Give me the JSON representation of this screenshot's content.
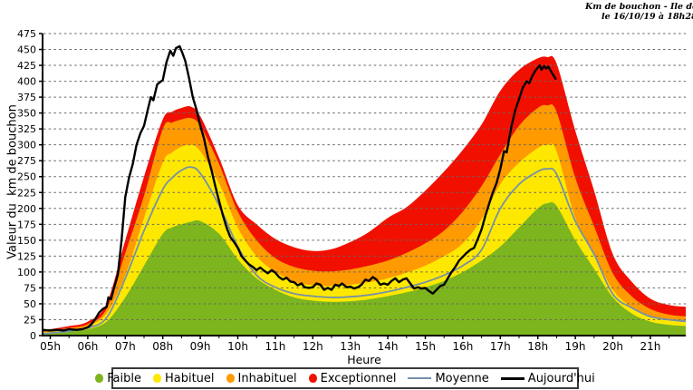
{
  "title": {
    "line1": "Km de bouchon - Ile de France",
    "line2": "le 16/10/19 à 18h28"
  },
  "colors": {
    "faible": "#7cb51e",
    "habituel": "#ffe800",
    "inhabituel": "#ff9a00",
    "exceptionnel": "#f11000",
    "moyenne": "#7591a8",
    "aujourdhui": "#000000",
    "grid": "#666666",
    "axis": "#000000"
  },
  "chart_data": {
    "type": "area",
    "title": "Km de bouchon - Ile de France",
    "subtitle": "le 16/10/19 à 18h28",
    "xlabel": "Heure",
    "ylabel": "Valeur du  km de bouchon",
    "xlim": [
      4.8,
      21.95
    ],
    "ylim": [
      0,
      475
    ],
    "grid": "horizontal dashed every 25",
    "legend_position": "bottom",
    "y_ticks": [
      0,
      25,
      50,
      75,
      100,
      125,
      150,
      175,
      200,
      225,
      250,
      275,
      300,
      325,
      350,
      375,
      400,
      425,
      450,
      475
    ],
    "x_ticks": [
      {
        "v": 5,
        "label": "05h"
      },
      {
        "v": 6,
        "label": "06h"
      },
      {
        "v": 7,
        "label": "07h"
      },
      {
        "v": 8,
        "label": "08h"
      },
      {
        "v": 9,
        "label": "09h"
      },
      {
        "v": 10,
        "label": "10h"
      },
      {
        "v": 11,
        "label": "11h"
      },
      {
        "v": 12,
        "label": "12h"
      },
      {
        "v": 13,
        "label": "13h"
      },
      {
        "v": 14,
        "label": "14h"
      },
      {
        "v": 15,
        "label": "15h"
      },
      {
        "v": 16,
        "label": "16h"
      },
      {
        "v": 17,
        "label": "17h"
      },
      {
        "v": 18,
        "label": "18h"
      },
      {
        "v": 19,
        "label": "19h"
      },
      {
        "v": 20,
        "label": "20h"
      },
      {
        "v": 21,
        "label": "21h"
      }
    ],
    "x": [
      4.8,
      5,
      5.5,
      6,
      6.5,
      7,
      7.5,
      8,
      8.25,
      8.5,
      8.75,
      9,
      9.5,
      10,
      10.5,
      11,
      11.5,
      12,
      12.5,
      13,
      13.5,
      14,
      14.5,
      15,
      15.5,
      16,
      16.5,
      17,
      17.5,
      18,
      18.25,
      18.5,
      19,
      19.5,
      20,
      20.5,
      21,
      21.5,
      22
    ],
    "bands": [
      {
        "name": "Exceptionnel",
        "color": "#f11000",
        "values": [
          8,
          10,
          15,
          22,
          50,
          150,
          250,
          340,
          352,
          358,
          360,
          345,
          280,
          205,
          175,
          152,
          139,
          133,
          136,
          147,
          163,
          185,
          202,
          228,
          258,
          292,
          332,
          385,
          418,
          436,
          438,
          428,
          322,
          228,
          128,
          85,
          58,
          48,
          45
        ]
      },
      {
        "name": "Inhabituel",
        "color": "#ff9a00",
        "values": [
          6,
          8,
          12,
          18,
          42,
          130,
          220,
          325,
          335,
          340,
          342,
          330,
          270,
          195,
          150,
          122,
          108,
          102,
          101,
          104,
          110,
          118,
          130,
          145,
          165,
          195,
          235,
          285,
          330,
          358,
          362,
          352,
          248,
          172,
          98,
          62,
          42,
          33,
          30
        ]
      },
      {
        "name": "Habituel",
        "color": "#ffe800",
        "values": [
          5,
          6,
          9,
          15,
          35,
          95,
          185,
          272,
          288,
          297,
          300,
          290,
          240,
          170,
          125,
          100,
          85,
          79,
          78,
          80,
          84,
          90,
          99,
          110,
          125,
          145,
          183,
          238,
          272,
          295,
          300,
          290,
          185,
          128,
          72,
          45,
          30,
          25,
          23
        ]
      },
      {
        "name": "Faible",
        "color": "#7cb51e",
        "values": [
          3,
          4,
          6,
          10,
          22,
          60,
          110,
          160,
          170,
          175,
          179,
          180,
          160,
          120,
          90,
          72,
          60,
          55,
          53,
          54,
          57,
          62,
          68,
          76,
          86,
          100,
          118,
          140,
          170,
          200,
          208,
          204,
          150,
          105,
          60,
          35,
          22,
          17,
          15
        ]
      }
    ],
    "lines": [
      {
        "name": "Moyenne",
        "color": "#7591a8",
        "width": 1.8,
        "smooth": true,
        "values": [
          3,
          4,
          7,
          12,
          28,
          90,
          165,
          230,
          248,
          260,
          265,
          255,
          205,
          140,
          95,
          76,
          66,
          62,
          60,
          61,
          64,
          69,
          76,
          84,
          95,
          110,
          135,
          200,
          238,
          258,
          262,
          254,
          180,
          128,
          65,
          44,
          30,
          25,
          22
        ]
      },
      {
        "name": "Aujourd'hui",
        "color": "#000000",
        "width": 2.4,
        "smooth": false,
        "points": [
          [
            4.8,
            9
          ],
          [
            5,
            8
          ],
          [
            5.2,
            9
          ],
          [
            5.35,
            8
          ],
          [
            5.5,
            10
          ],
          [
            5.7,
            9
          ],
          [
            5.85,
            10
          ],
          [
            6,
            13
          ],
          [
            6.1,
            18
          ],
          [
            6.2,
            26
          ],
          [
            6.3,
            36
          ],
          [
            6.4,
            42
          ],
          [
            6.5,
            45
          ],
          [
            6.55,
            60
          ],
          [
            6.62,
            57
          ],
          [
            6.7,
            75
          ],
          [
            6.8,
            95
          ],
          [
            6.9,
            150
          ],
          [
            7,
            218
          ],
          [
            7.1,
            248
          ],
          [
            7.2,
            270
          ],
          [
            7.3,
            300
          ],
          [
            7.4,
            318
          ],
          [
            7.5,
            330
          ],
          [
            7.6,
            355
          ],
          [
            7.68,
            375
          ],
          [
            7.75,
            370
          ],
          [
            7.85,
            395
          ],
          [
            8,
            402
          ],
          [
            8.1,
            430
          ],
          [
            8.2,
            448
          ],
          [
            8.28,
            440
          ],
          [
            8.35,
            452
          ],
          [
            8.45,
            455
          ],
          [
            8.52,
            445
          ],
          [
            8.6,
            432
          ],
          [
            8.7,
            405
          ],
          [
            8.8,
            375
          ],
          [
            8.9,
            355
          ],
          [
            9,
            330
          ],
          [
            9.1,
            310
          ],
          [
            9.2,
            282
          ],
          [
            9.3,
            260
          ],
          [
            9.4,
            235
          ],
          [
            9.5,
            212
          ],
          [
            9.6,
            190
          ],
          [
            9.7,
            170
          ],
          [
            9.8,
            155
          ],
          [
            9.9,
            147
          ],
          [
            10,
            138
          ],
          [
            10.1,
            125
          ],
          [
            10.2,
            118
          ],
          [
            10.3,
            112
          ],
          [
            10.4,
            108
          ],
          [
            10.5,
            103
          ],
          [
            10.6,
            107
          ],
          [
            10.7,
            102
          ],
          [
            10.8,
            98
          ],
          [
            10.9,
            103
          ],
          [
            11,
            99
          ],
          [
            11.1,
            92
          ],
          [
            11.2,
            88
          ],
          [
            11.3,
            91
          ],
          [
            11.4,
            85
          ],
          [
            11.5,
            84
          ],
          [
            11.6,
            79
          ],
          [
            11.7,
            82
          ],
          [
            11.78,
            76
          ],
          [
            11.9,
            75
          ],
          [
            12,
            76
          ],
          [
            12.1,
            82
          ],
          [
            12.2,
            80
          ],
          [
            12.3,
            72
          ],
          [
            12.4,
            75
          ],
          [
            12.5,
            72
          ],
          [
            12.6,
            80
          ],
          [
            12.7,
            78
          ],
          [
            12.78,
            82
          ],
          [
            12.9,
            76
          ],
          [
            13,
            77
          ],
          [
            13.1,
            74
          ],
          [
            13.2,
            76
          ],
          [
            13.3,
            80
          ],
          [
            13.4,
            88
          ],
          [
            13.5,
            86
          ],
          [
            13.6,
            92
          ],
          [
            13.7,
            88
          ],
          [
            13.8,
            80
          ],
          [
            13.9,
            82
          ],
          [
            14,
            80
          ],
          [
            14.1,
            86
          ],
          [
            14.2,
            90
          ],
          [
            14.3,
            84
          ],
          [
            14.4,
            88
          ],
          [
            14.5,
            90
          ],
          [
            14.6,
            82
          ],
          [
            14.7,
            74
          ],
          [
            14.8,
            76
          ],
          [
            14.9,
            74
          ],
          [
            15,
            75
          ],
          [
            15.1,
            70
          ],
          [
            15.2,
            66
          ],
          [
            15.3,
            72
          ],
          [
            15.4,
            78
          ],
          [
            15.5,
            80
          ],
          [
            15.6,
            90
          ],
          [
            15.7,
            100
          ],
          [
            15.8,
            108
          ],
          [
            15.9,
            118
          ],
          [
            16,
            124
          ],
          [
            16.1,
            130
          ],
          [
            16.2,
            135
          ],
          [
            16.3,
            138
          ],
          [
            16.4,
            152
          ],
          [
            16.5,
            167
          ],
          [
            16.6,
            188
          ],
          [
            16.7,
            207
          ],
          [
            16.8,
            225
          ],
          [
            16.9,
            240
          ],
          [
            17,
            262
          ],
          [
            17.1,
            290
          ],
          [
            17.17,
            288
          ],
          [
            17.3,
            330
          ],
          [
            17.4,
            355
          ],
          [
            17.5,
            372
          ],
          [
            17.6,
            390
          ],
          [
            17.7,
            400
          ],
          [
            17.77,
            397
          ],
          [
            17.85,
            408
          ],
          [
            17.95,
            418
          ],
          [
            18.05,
            425
          ],
          [
            18.1,
            418
          ],
          [
            18.17,
            424
          ],
          [
            18.22,
            420
          ],
          [
            18.28,
            423
          ],
          [
            18.37,
            414
          ],
          [
            18.47,
            404
          ]
        ]
      }
    ]
  },
  "legend": {
    "items": [
      {
        "id": "faible",
        "label": "Faible",
        "type": "area",
        "color": "#7cb51e"
      },
      {
        "id": "habituel",
        "label": "Habituel",
        "type": "area",
        "color": "#ffe800"
      },
      {
        "id": "inhabituel",
        "label": "Inhabituel",
        "type": "area",
        "color": "#ff9a00"
      },
      {
        "id": "exceptionnel",
        "label": "Exceptionnel",
        "type": "area",
        "color": "#f11000"
      },
      {
        "id": "moyenne",
        "label": "Moyenne",
        "type": "line",
        "color": "#7591a8",
        "thickness": 2
      },
      {
        "id": "aujourdhui",
        "label": "Aujourd'hui",
        "type": "line",
        "color": "#000000",
        "thickness": 3
      }
    ]
  }
}
